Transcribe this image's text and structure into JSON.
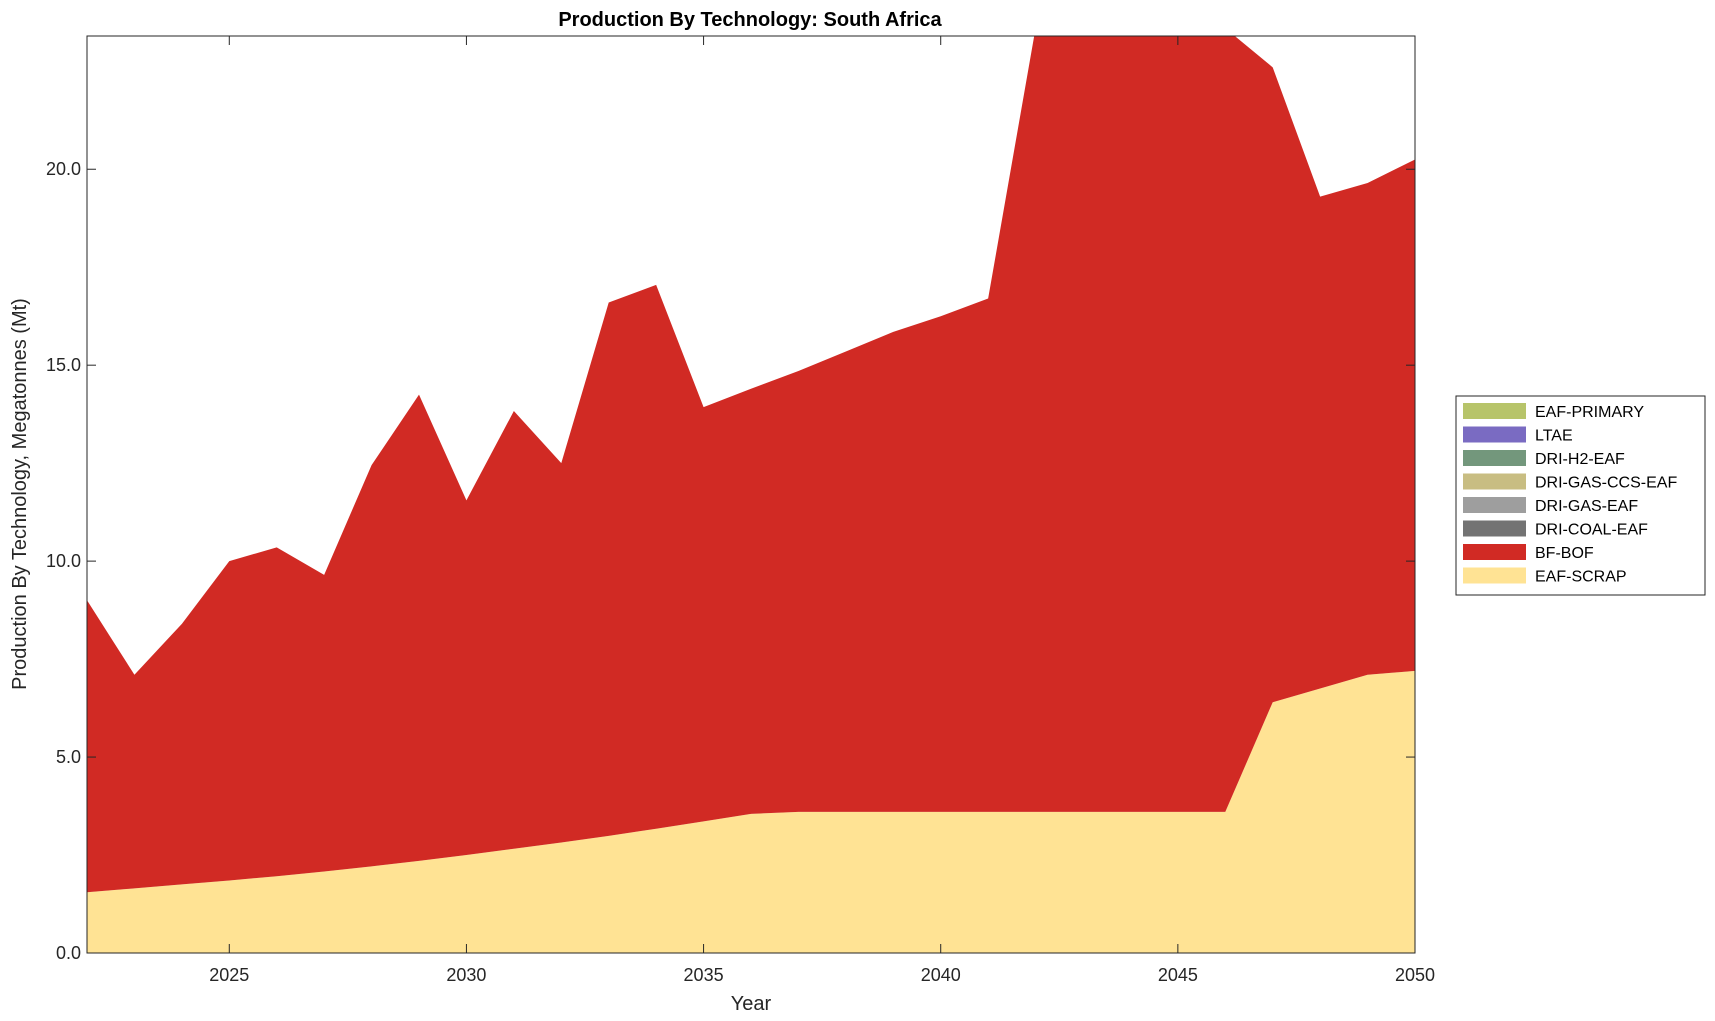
{
  "chart_data": {
    "type": "area",
    "stacked": true,
    "title": "Production By Technology: South Africa",
    "xlabel": "Year",
    "ylabel": "Production By Technology, Megatonnes (Mt)",
    "xlim": [
      2022,
      2050
    ],
    "ylim": [
      0,
      23.4
    ],
    "xticks": [
      2025,
      2030,
      2035,
      2040,
      2045,
      2050
    ],
    "xtick_labels": [
      "2025",
      "2030",
      "2035",
      "2040",
      "2045",
      "2050"
    ],
    "yticks": [
      0,
      5,
      10,
      15,
      20
    ],
    "ytick_labels": [
      "0.0",
      "5.0",
      "10.0",
      "15.0",
      "20.0"
    ],
    "grid": false,
    "legend_position": "right",
    "x": [
      2022,
      2023,
      2024,
      2025,
      2026,
      2027,
      2028,
      2029,
      2030,
      2031,
      2032,
      2033,
      2034,
      2035,
      2036,
      2037,
      2038,
      2039,
      2040,
      2041,
      2042,
      2043,
      2044,
      2045,
      2046,
      2047,
      2048,
      2049,
      2050
    ],
    "series": [
      {
        "name": "EAF-SCRAP",
        "color": "#FFE394",
        "values": [
          1.55,
          1.65,
          1.75,
          1.85,
          1.96,
          2.08,
          2.21,
          2.35,
          2.5,
          2.66,
          2.82,
          2.99,
          3.17,
          3.36,
          3.55,
          3.6,
          3.6,
          3.6,
          3.6,
          3.6,
          3.6,
          3.6,
          3.6,
          3.6,
          3.6,
          6.4,
          6.75,
          7.1,
          7.2
        ]
      },
      {
        "name": "BF-BOF",
        "color": "#D12A24",
        "values": [
          7.45,
          5.45,
          6.65,
          8.15,
          8.39,
          7.57,
          10.24,
          11.9,
          9.05,
          11.17,
          9.68,
          13.61,
          13.88,
          10.57,
          10.85,
          11.25,
          11.75,
          12.25,
          12.65,
          13.1,
          20.0,
          20.2,
          20.3,
          20.3,
          20.0,
          16.2,
          12.55,
          12.55,
          13.05
        ]
      },
      {
        "name": "DRI-COAL-EAF",
        "color": "#737373",
        "values": [
          0,
          0,
          0,
          0,
          0,
          0,
          0,
          0,
          0,
          0,
          0,
          0,
          0,
          0,
          0,
          0,
          0,
          0,
          0,
          0,
          0,
          0,
          0,
          0,
          0,
          0,
          0,
          0,
          0
        ]
      },
      {
        "name": "DRI-GAS-EAF",
        "color": "#9E9E9E",
        "values": [
          0,
          0,
          0,
          0,
          0,
          0,
          0,
          0,
          0,
          0,
          0,
          0,
          0,
          0,
          0,
          0,
          0,
          0,
          0,
          0,
          0,
          0,
          0,
          0,
          0,
          0,
          0,
          0,
          0
        ]
      },
      {
        "name": "DRI-GAS-CCS-EAF",
        "color": "#C8BD82",
        "values": [
          0,
          0,
          0,
          0,
          0,
          0,
          0,
          0,
          0,
          0,
          0,
          0,
          0,
          0,
          0,
          0,
          0,
          0,
          0,
          0,
          0,
          0,
          0,
          0,
          0,
          0,
          0,
          0,
          0
        ]
      },
      {
        "name": "DRI-H2-EAF",
        "color": "#73977C",
        "values": [
          0,
          0,
          0,
          0,
          0,
          0,
          0,
          0,
          0,
          0,
          0,
          0,
          0,
          0,
          0,
          0,
          0,
          0,
          0,
          0,
          0,
          0,
          0,
          0,
          0,
          0,
          0,
          0,
          0
        ]
      },
      {
        "name": "LTAE",
        "color": "#7A6BC2",
        "values": [
          0,
          0,
          0,
          0,
          0,
          0,
          0,
          0,
          0,
          0,
          0,
          0,
          0,
          0,
          0,
          0,
          0,
          0,
          0,
          0,
          0,
          0,
          0,
          0,
          0,
          0,
          0,
          0,
          0
        ]
      },
      {
        "name": "EAF-PRIMARY",
        "color": "#B7C46A",
        "values": [
          0,
          0,
          0,
          0,
          0,
          0,
          0,
          0,
          0,
          0,
          0,
          0,
          0,
          0,
          0,
          0,
          0,
          0,
          0,
          0,
          0,
          0,
          0,
          0,
          0,
          0,
          0,
          0,
          0
        ]
      }
    ],
    "legend_order": [
      "EAF-PRIMARY",
      "LTAE",
      "DRI-H2-EAF",
      "DRI-GAS-CCS-EAF",
      "DRI-GAS-EAF",
      "DRI-COAL-EAF",
      "BF-BOF",
      "EAF-SCRAP"
    ]
  }
}
